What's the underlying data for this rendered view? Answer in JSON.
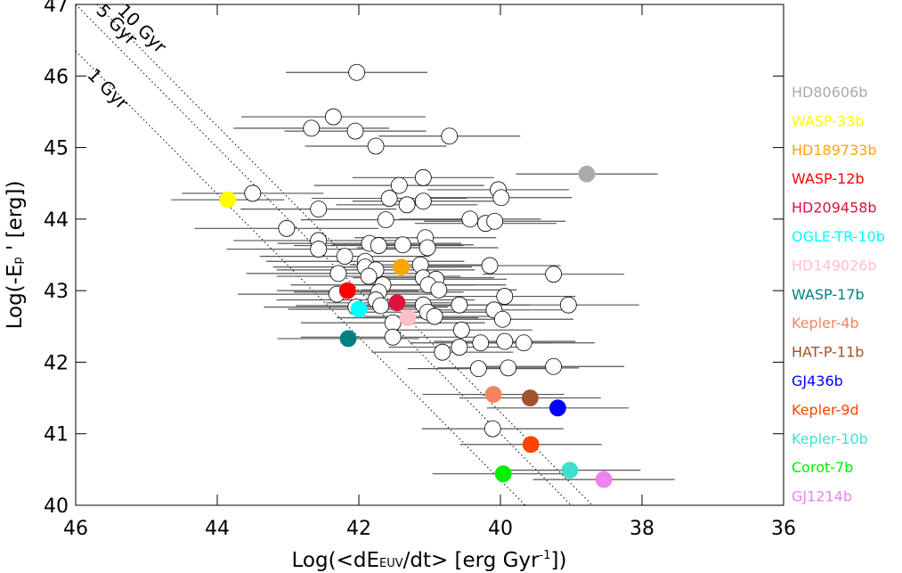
{
  "chart_data": {
    "type": "scatter",
    "xlabel": [
      "Log(<dE",
      "EUV",
      "/dt> [erg Gyr",
      "-1",
      "])"
    ],
    "ylabel": [
      "Log(-E",
      "p",
      " ' [erg])"
    ],
    "xlim": [
      46,
      36
    ],
    "ylim": [
      40,
      47
    ],
    "xticks": [
      46,
      44,
      42,
      40,
      38,
      36
    ],
    "yticks": [
      40,
      41,
      42,
      43,
      44,
      45,
      46,
      47
    ],
    "isochrones": [
      {
        "label": "10 Gyr",
        "x": [
          45.7,
          38.7
        ],
        "y": [
          47,
          40
        ]
      },
      {
        "label": "5 Gyr",
        "x": [
          46,
          39
        ],
        "y": [
          47,
          40
        ]
      },
      {
        "label": "1 Gyr",
        "x": [
          46,
          39.65
        ],
        "y": [
          46.35,
          40
        ]
      }
    ],
    "series": [
      {
        "color": "#ffffff",
        "x": [
          42.03,
          42.36,
          42.67,
          42.05,
          40.72,
          41.76,
          41.09,
          41.43,
          40.03,
          43.5,
          41.57,
          41.09,
          39.99,
          41.32,
          42.57,
          41.62,
          40.43,
          40.21,
          40.08,
          43.02,
          42.57,
          41.06,
          41.85,
          41.72,
          41.38,
          42.57,
          41.03,
          42.2,
          41.91,
          41.91,
          41.13,
          40.15,
          39.25,
          42.29,
          41.76,
          41.86,
          41.09,
          40.91,
          41.02,
          41.66,
          40.87,
          42.31,
          41.72,
          41.76,
          39.94,
          40.58,
          40.09,
          39.04,
          42.04,
          41.69,
          41.09,
          41.03,
          39.97,
          41.52,
          40.93,
          40.55,
          41.52,
          39.94,
          40.28,
          39.67,
          40.58,
          40.82,
          40.31,
          39.89,
          39.25,
          40.11
        ],
        "y": [
          46.05,
          45.43,
          45.27,
          45.23,
          45.16,
          45.02,
          44.58,
          44.47,
          44.41,
          44.36,
          44.29,
          44.25,
          44.3,
          44.2,
          44.14,
          43.99,
          44.0,
          43.94,
          43.97,
          43.87,
          43.7,
          43.74,
          43.66,
          43.63,
          43.64,
          43.58,
          43.6,
          43.48,
          43.41,
          43.33,
          43.36,
          43.35,
          43.23,
          43.24,
          43.29,
          43.2,
          43.18,
          43.16,
          43.08,
          43.08,
          43.01,
          42.95,
          42.98,
          42.87,
          42.92,
          42.8,
          42.73,
          42.8,
          42.77,
          42.79,
          42.8,
          42.7,
          42.6,
          42.55,
          42.64,
          42.45,
          42.35,
          42.29,
          42.27,
          42.27,
          42.21,
          42.14,
          41.91,
          41.92,
          41.94,
          41.07
        ],
        "xerr": [
          1.0,
          1.3,
          1.1,
          1.0,
          1.0,
          1.0,
          1.0,
          1.2,
          1.0,
          1.0,
          1.1,
          1.0,
          1.0,
          1.0,
          1.1,
          1.2,
          1.0,
          1.0,
          1.0,
          1.3,
          1.2,
          1.0,
          1.3,
          1.2,
          1.0,
          1.3,
          1.0,
          1.2,
          1.4,
          1.3,
          1.0,
          1.0,
          1.0,
          1.3,
          1.4,
          1.3,
          1.0,
          1.0,
          1.1,
          1.3,
          1.1,
          1.4,
          1.2,
          1.4,
          1.0,
          1.0,
          1.0,
          1.0,
          1.3,
          1.2,
          1.0,
          1.0,
          1.0,
          1.3,
          1.0,
          1.0,
          1.3,
          1.0,
          1.0,
          1.0,
          1.0,
          1.0,
          1.0,
          1.0,
          1.0,
          1.0
        ]
      },
      {
        "name": "HD80606b",
        "color": "#aaaaaa",
        "x": [
          38.78
        ],
        "y": [
          44.63
        ],
        "xerr": [
          1.0
        ]
      },
      {
        "name": "WASP-33b",
        "color": "#ffff00",
        "x": [
          43.85
        ],
        "y": [
          44.27
        ],
        "xerr": [
          0.8
        ]
      },
      {
        "name": "HD189733b",
        "color": "#ffa500",
        "x": [
          41.4
        ],
        "y": [
          43.33
        ],
        "xerr": [
          1.0
        ]
      },
      {
        "name": "WASP-12b",
        "color": "#ff0000",
        "x": [
          42.16
        ],
        "y": [
          43.0
        ],
        "xerr": [
          1.0
        ]
      },
      {
        "name": "HD209458b",
        "color": "#dc143c",
        "x": [
          41.46
        ],
        "y": [
          42.83
        ],
        "xerr": [
          1.0
        ]
      },
      {
        "name": "OGLE-TR-10b",
        "color": "#00ffff",
        "x": [
          42.0
        ],
        "y": [
          42.74
        ],
        "xerr": [
          1.0
        ]
      },
      {
        "name": "HD149026b",
        "color": "#ffc0cb",
        "x": [
          41.31
        ],
        "y": [
          42.62
        ],
        "xerr": [
          1.0
        ]
      },
      {
        "name": "WASP-17b",
        "color": "#008080",
        "x": [
          42.15
        ],
        "y": [
          42.33
        ],
        "xerr": [
          1.0
        ]
      },
      {
        "name": "Kepler-4b",
        "color": "#f4845f",
        "x": [
          40.1
        ],
        "y": [
          41.55
        ],
        "xerr": [
          1.0
        ]
      },
      {
        "name": "HAT-P-11b",
        "color": "#a0522d",
        "x": [
          39.58
        ],
        "y": [
          41.5
        ],
        "xerr": [
          1.0
        ]
      },
      {
        "name": "GJ436b",
        "color": "#0000ff",
        "x": [
          39.19
        ],
        "y": [
          41.36
        ],
        "xerr": [
          1.0
        ]
      },
      {
        "name": "Kepler-9d",
        "color": "#ff4500",
        "x": [
          39.57
        ],
        "y": [
          40.85
        ],
        "xerr": [
          1.0
        ]
      },
      {
        "name": "Kepler-10b",
        "color": "#40e0d0",
        "x": [
          39.02
        ],
        "y": [
          40.49
        ],
        "xerr": [
          1.0
        ]
      },
      {
        "name": "Corot-7b",
        "color": "#00ee00",
        "x": [
          39.96
        ],
        "y": [
          40.44
        ],
        "xerr": [
          1.0
        ]
      },
      {
        "name": "GJ1214b",
        "color": "#ee82ee",
        "x": [
          38.54
        ],
        "y": [
          40.36
        ],
        "xerr": [
          1.0
        ]
      }
    ]
  }
}
